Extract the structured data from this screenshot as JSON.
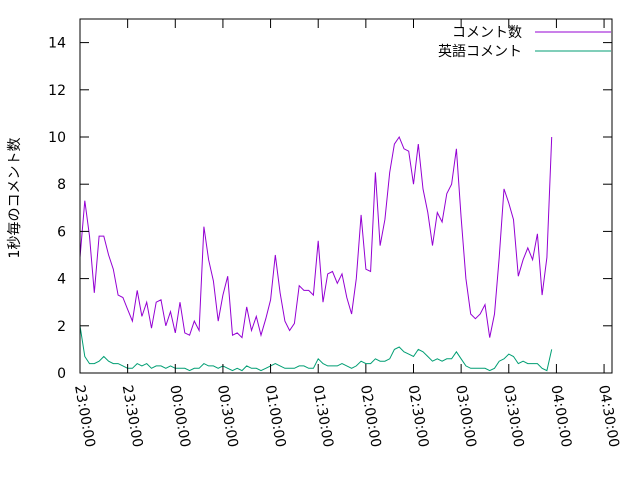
{
  "chart_data": {
    "type": "line",
    "title": "",
    "xlabel": "",
    "ylabel": "1秒毎のコメント数",
    "ylim": [
      0,
      15
    ],
    "yticks": [
      0,
      2,
      4,
      6,
      8,
      10,
      12,
      14
    ],
    "xticks": [
      "23:00:00",
      "23:30:00",
      "00:00:00",
      "00:30:00",
      "01:00:00",
      "01:30:00",
      "02:00:00",
      "02:30:00",
      "03:00:00",
      "03:30:00",
      "04:00:00",
      "04:30:00"
    ],
    "x_start": "23:00:00",
    "x_step_minutes": 3,
    "legend_position": "top-right",
    "grid": false,
    "series": [
      {
        "name": "コメント数",
        "color": "#9400d3",
        "values": [
          4.9,
          7.3,
          5.8,
          3.4,
          5.8,
          5.8,
          5.0,
          4.4,
          3.3,
          3.2,
          2.7,
          2.2,
          3.5,
          2.4,
          3.0,
          1.9,
          3.0,
          3.1,
          2.0,
          2.6,
          1.7,
          3.0,
          1.7,
          1.6,
          2.2,
          1.8,
          6.2,
          4.8,
          3.9,
          2.2,
          3.3,
          4.1,
          1.6,
          1.7,
          1.5,
          2.8,
          1.8,
          2.4,
          1.6,
          2.3,
          3.1,
          5.0,
          3.4,
          2.2,
          1.8,
          2.1,
          3.7,
          3.5,
          3.5,
          3.3,
          5.6,
          3.0,
          4.2,
          4.3,
          3.8,
          4.2,
          3.2,
          2.5,
          4.0,
          6.7,
          4.4,
          4.3,
          8.5,
          5.4,
          6.5,
          8.5,
          9.7,
          10.0,
          9.5,
          9.4,
          8.0,
          9.7,
          7.8,
          6.8,
          5.4,
          6.8,
          6.4,
          7.6,
          8.0,
          9.5,
          6.6,
          4.0,
          2.5,
          2.3,
          2.5,
          2.9,
          1.5,
          2.5,
          4.9,
          7.8,
          7.2,
          6.5,
          4.1,
          4.8,
          5.3,
          4.8,
          5.9,
          3.3,
          4.9,
          10.0
        ]
      },
      {
        "name": "英語コメント",
        "color": "#009e73",
        "values": [
          2.0,
          0.7,
          0.4,
          0.4,
          0.5,
          0.7,
          0.5,
          0.4,
          0.4,
          0.3,
          0.2,
          0.2,
          0.4,
          0.3,
          0.4,
          0.2,
          0.3,
          0.3,
          0.2,
          0.3,
          0.2,
          0.2,
          0.2,
          0.1,
          0.2,
          0.2,
          0.4,
          0.3,
          0.3,
          0.2,
          0.3,
          0.2,
          0.1,
          0.2,
          0.1,
          0.3,
          0.2,
          0.2,
          0.1,
          0.2,
          0.3,
          0.4,
          0.3,
          0.2,
          0.2,
          0.2,
          0.3,
          0.3,
          0.2,
          0.2,
          0.6,
          0.4,
          0.3,
          0.3,
          0.3,
          0.4,
          0.3,
          0.2,
          0.3,
          0.5,
          0.4,
          0.4,
          0.6,
          0.5,
          0.5,
          0.6,
          1.0,
          1.1,
          0.9,
          0.8,
          0.7,
          1.0,
          0.9,
          0.7,
          0.5,
          0.6,
          0.5,
          0.6,
          0.6,
          0.9,
          0.6,
          0.3,
          0.2,
          0.2,
          0.2,
          0.2,
          0.1,
          0.2,
          0.5,
          0.6,
          0.8,
          0.7,
          0.4,
          0.5,
          0.4,
          0.4,
          0.4,
          0.2,
          0.1,
          1.0
        ]
      }
    ]
  }
}
